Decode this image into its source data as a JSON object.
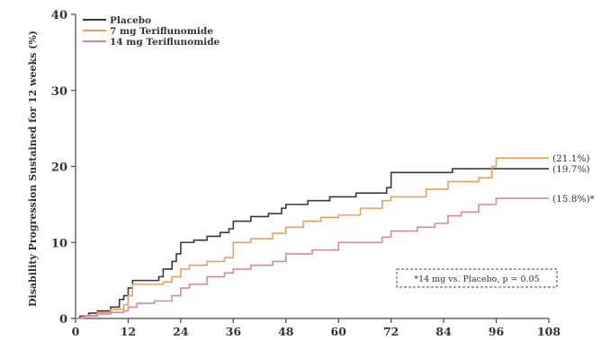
{
  "chart_data": {
    "type": "line",
    "step": true,
    "ylabel": "Disability Progression Sustained for 12 weeks (%)",
    "xlabel": "",
    "xlim": [
      0,
      108
    ],
    "ylim": [
      0,
      40
    ],
    "x_ticks": [
      0,
      12,
      24,
      36,
      48,
      60,
      72,
      84,
      96,
      108
    ],
    "y_ticks": [
      0,
      10,
      20,
      30,
      40
    ],
    "grid": false,
    "legend_position": "top-left",
    "series": [
      {
        "name": "Placebo",
        "color": "#3a3a3a",
        "end_label": "(19.7%)",
        "points": [
          [
            0,
            0
          ],
          [
            1,
            0.3
          ],
          [
            3,
            0.7
          ],
          [
            5,
            1
          ],
          [
            8,
            1.5
          ],
          [
            10,
            2.5
          ],
          [
            11,
            3
          ],
          [
            12,
            4
          ],
          [
            13,
            5
          ],
          [
            18,
            5
          ],
          [
            19,
            5.5
          ],
          [
            20,
            6.5
          ],
          [
            22,
            7.5
          ],
          [
            23,
            8.5
          ],
          [
            24,
            10
          ],
          [
            27,
            10.3
          ],
          [
            30,
            10.8
          ],
          [
            33,
            11.3
          ],
          [
            35,
            11.8
          ],
          [
            36,
            12.8
          ],
          [
            40,
            13.4
          ],
          [
            44,
            13.8
          ],
          [
            47,
            14.5
          ],
          [
            48,
            15
          ],
          [
            53,
            15.5
          ],
          [
            58,
            16
          ],
          [
            64,
            16.5
          ],
          [
            71,
            17.2
          ],
          [
            72,
            19.2
          ],
          [
            84,
            19.2
          ],
          [
            86,
            19.7
          ],
          [
            108,
            19.7
          ]
        ]
      },
      {
        "name": "7 mg  Teriflunomide",
        "color": "#e8a060",
        "end_label": "(21.1%)",
        "points": [
          [
            0,
            0
          ],
          [
            2,
            0.4
          ],
          [
            5,
            0.8
          ],
          [
            8,
            1.2
          ],
          [
            11,
            1.8
          ],
          [
            12,
            3
          ],
          [
            13,
            4.5
          ],
          [
            20,
            4.8
          ],
          [
            22,
            5.5
          ],
          [
            24,
            6.5
          ],
          [
            26,
            7
          ],
          [
            30,
            7.5
          ],
          [
            34,
            8
          ],
          [
            36,
            10
          ],
          [
            40,
            10.5
          ],
          [
            45,
            11.2
          ],
          [
            48,
            12
          ],
          [
            52,
            12.8
          ],
          [
            56,
            13.3
          ],
          [
            60,
            13.6
          ],
          [
            65,
            14.5
          ],
          [
            70,
            15.5
          ],
          [
            72,
            16
          ],
          [
            80,
            17
          ],
          [
            85,
            18
          ],
          [
            92,
            18.5
          ],
          [
            95,
            20
          ],
          [
            96,
            21.1
          ],
          [
            108,
            21.1
          ]
        ]
      },
      {
        "name": "14 mg  Teriflunomide",
        "color": "#d98a9a",
        "end_label": "(15.8%)*",
        "points": [
          [
            0,
            0
          ],
          [
            2,
            0.3
          ],
          [
            5,
            0.6
          ],
          [
            8,
            0.8
          ],
          [
            11,
            1
          ],
          [
            12,
            1.5
          ],
          [
            14,
            2
          ],
          [
            18,
            2.3
          ],
          [
            22,
            3
          ],
          [
            24,
            4
          ],
          [
            26,
            4.5
          ],
          [
            30,
            5.5
          ],
          [
            34,
            6
          ],
          [
            36,
            6.5
          ],
          [
            40,
            7
          ],
          [
            45,
            7.5
          ],
          [
            48,
            8.5
          ],
          [
            54,
            9
          ],
          [
            58,
            9
          ],
          [
            60,
            10
          ],
          [
            66,
            10
          ],
          [
            70,
            10.7
          ],
          [
            72,
            11.5
          ],
          [
            78,
            12
          ],
          [
            82,
            12.5
          ],
          [
            85,
            13.5
          ],
          [
            88,
            14
          ],
          [
            92,
            15
          ],
          [
            96,
            15.8
          ],
          [
            108,
            15.8
          ]
        ]
      }
    ],
    "annotation": "*14 mg vs. Placebo, p = 0.05"
  }
}
